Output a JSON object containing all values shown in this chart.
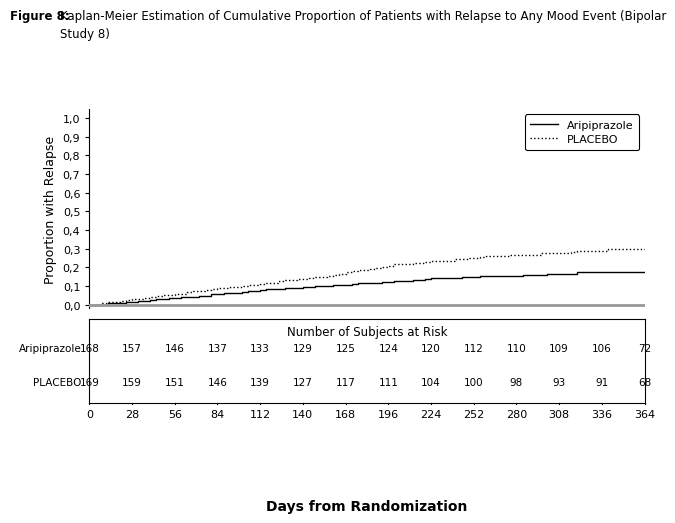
{
  "title_bold": "Figure 8:",
  "title_rest": "  Kaplan-Meier Estimation of Cumulative Proportion of Patients with Relapse to Any Mood Event (Bipolar\n        Study 8)",
  "xlabel": "Days from Randomization",
  "ylabel": "Proportion with Relapse",
  "risk_label": "Number of Subjects at Risk",
  "ylim": [
    0.0,
    1.0
  ],
  "xlim": [
    0,
    364
  ],
  "yticks": [
    0.0,
    0.1,
    0.2,
    0.3,
    0.4,
    0.5,
    0.6,
    0.7,
    0.8,
    0.9,
    1.0
  ],
  "xticks": [
    0,
    28,
    56,
    84,
    112,
    140,
    168,
    196,
    224,
    252,
    280,
    308,
    336,
    364
  ],
  "aripiprazole_x": [
    0,
    4,
    8,
    12,
    16,
    20,
    24,
    28,
    32,
    36,
    40,
    44,
    48,
    52,
    56,
    60,
    64,
    68,
    72,
    76,
    80,
    84,
    88,
    92,
    96,
    100,
    104,
    108,
    112,
    116,
    120,
    124,
    128,
    132,
    136,
    140,
    144,
    148,
    152,
    156,
    160,
    164,
    168,
    172,
    176,
    180,
    184,
    188,
    192,
    196,
    200,
    204,
    208,
    212,
    216,
    220,
    224,
    228,
    232,
    236,
    240,
    244,
    248,
    252,
    256,
    260,
    264,
    268,
    272,
    276,
    280,
    284,
    288,
    292,
    296,
    300,
    304,
    308,
    312,
    316,
    320,
    324,
    328,
    332,
    336,
    340,
    344,
    348,
    352,
    356,
    360,
    364
  ],
  "aripiprazole_y": [
    0.0,
    0.0,
    0.0,
    0.006,
    0.006,
    0.006,
    0.012,
    0.012,
    0.018,
    0.018,
    0.024,
    0.03,
    0.03,
    0.036,
    0.036,
    0.042,
    0.042,
    0.042,
    0.048,
    0.048,
    0.054,
    0.054,
    0.06,
    0.06,
    0.06,
    0.066,
    0.072,
    0.072,
    0.078,
    0.083,
    0.083,
    0.083,
    0.089,
    0.089,
    0.089,
    0.095,
    0.095,
    0.1,
    0.1,
    0.1,
    0.106,
    0.106,
    0.106,
    0.111,
    0.116,
    0.116,
    0.116,
    0.116,
    0.121,
    0.121,
    0.127,
    0.127,
    0.127,
    0.132,
    0.132,
    0.137,
    0.142,
    0.142,
    0.142,
    0.142,
    0.142,
    0.148,
    0.148,
    0.148,
    0.153,
    0.153,
    0.153,
    0.153,
    0.153,
    0.153,
    0.153,
    0.159,
    0.159,
    0.159,
    0.159,
    0.165,
    0.165,
    0.165,
    0.165,
    0.165,
    0.175,
    0.175,
    0.175,
    0.175,
    0.175,
    0.175,
    0.175,
    0.175,
    0.175,
    0.175,
    0.175,
    0.175
  ],
  "placebo_x": [
    0,
    4,
    8,
    12,
    16,
    20,
    24,
    28,
    32,
    36,
    40,
    44,
    48,
    52,
    56,
    60,
    64,
    68,
    72,
    76,
    80,
    84,
    88,
    92,
    96,
    100,
    104,
    108,
    112,
    116,
    120,
    124,
    128,
    132,
    136,
    140,
    144,
    148,
    152,
    156,
    160,
    164,
    168,
    172,
    176,
    180,
    184,
    188,
    192,
    196,
    200,
    204,
    208,
    212,
    216,
    220,
    224,
    228,
    232,
    236,
    240,
    244,
    248,
    252,
    256,
    260,
    264,
    268,
    272,
    276,
    280,
    284,
    288,
    292,
    296,
    300,
    304,
    308,
    312,
    316,
    320,
    324,
    328,
    332,
    336,
    340,
    344,
    348,
    352,
    356,
    360,
    364
  ],
  "placebo_y": [
    0.0,
    0.0,
    0.006,
    0.012,
    0.012,
    0.018,
    0.024,
    0.03,
    0.03,
    0.036,
    0.042,
    0.047,
    0.053,
    0.053,
    0.059,
    0.059,
    0.065,
    0.071,
    0.071,
    0.076,
    0.082,
    0.088,
    0.088,
    0.094,
    0.094,
    0.1,
    0.106,
    0.106,
    0.112,
    0.118,
    0.118,
    0.124,
    0.13,
    0.13,
    0.136,
    0.136,
    0.142,
    0.148,
    0.148,
    0.154,
    0.16,
    0.166,
    0.172,
    0.178,
    0.184,
    0.184,
    0.19,
    0.196,
    0.202,
    0.209,
    0.215,
    0.215,
    0.215,
    0.222,
    0.222,
    0.228,
    0.235,
    0.235,
    0.235,
    0.235,
    0.242,
    0.242,
    0.248,
    0.248,
    0.255,
    0.261,
    0.261,
    0.261,
    0.261,
    0.268,
    0.268,
    0.268,
    0.268,
    0.268,
    0.275,
    0.275,
    0.275,
    0.275,
    0.275,
    0.282,
    0.289,
    0.289,
    0.289,
    0.289,
    0.289,
    0.296,
    0.296,
    0.296,
    0.296,
    0.296,
    0.296,
    0.296
  ],
  "aripiprazole_color": "#000000",
  "placebo_color": "#000000",
  "aripiprazole_risk": [
    168,
    157,
    146,
    137,
    133,
    129,
    125,
    124,
    120,
    112,
    110,
    109,
    106,
    72
  ],
  "placebo_risk": [
    169,
    159,
    151,
    146,
    139,
    127,
    117,
    111,
    104,
    100,
    98,
    93,
    91,
    68
  ],
  "risk_days": [
    0,
    28,
    56,
    84,
    112,
    140,
    168,
    196,
    224,
    252,
    280,
    308,
    336,
    364
  ],
  "legend_aripiprazole": "Aripiprazole",
  "legend_placebo": "PLACEBO",
  "axis_line_color": "#999999"
}
